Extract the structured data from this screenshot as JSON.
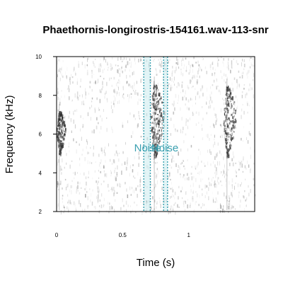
{
  "chart_data": {
    "type": "spectrogram",
    "title": "Phaethornis-longirostris-154161.wav-113-snr",
    "xlabel": "Time (s)",
    "ylabel": "Frequency (kHz)",
    "xlim": [
      0,
      1.5
    ],
    "ylim": [
      2,
      10
    ],
    "x_ticks": [
      {
        "value": 0,
        "label": "0"
      },
      {
        "value": 0.5,
        "label": "0.5"
      },
      {
        "value": 1,
        "label": "1"
      }
    ],
    "y_ticks": [
      {
        "value": 2,
        "label": "2"
      },
      {
        "value": 4,
        "label": "4"
      },
      {
        "value": 6,
        "label": "6"
      },
      {
        "value": 8,
        "label": "8"
      },
      {
        "value": 10,
        "label": "10"
      }
    ],
    "annotations": [
      {
        "label": "Noise",
        "start": 0.66,
        "end": 0.71,
        "label_x": 0.69,
        "label_y": 5.1,
        "color": "#3aa0b0"
      },
      {
        "label": "Noise",
        "start": 0.81,
        "end": 0.84,
        "label_x": 0.82,
        "label_y": 5.1,
        "color": "#3aa0b0"
      }
    ],
    "calls": [
      {
        "t_start": 0.0,
        "t_end": 0.09,
        "f_low": 5.0,
        "f_high": 7.2,
        "peak_time": 0.02
      },
      {
        "t_start": 0.69,
        "t_end": 0.84,
        "f_low": 4.8,
        "f_high": 8.6,
        "peak_time": 0.74
      },
      {
        "t_start": 1.25,
        "t_end": 1.38,
        "f_low": 4.8,
        "f_high": 8.5,
        "peak_time": 1.29
      }
    ],
    "colors": {
      "annotation": "#3aa0b0",
      "annotation_fill": "#bfe6ec",
      "ink": "#000000"
    }
  }
}
